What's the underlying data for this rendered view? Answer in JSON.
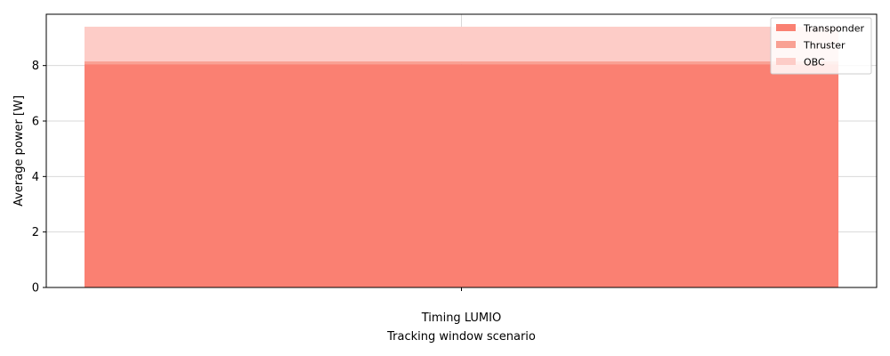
{
  "chart_data": {
    "type": "bar",
    "stacked": true,
    "categories": [
      "Timing LUMIO"
    ],
    "series": [
      {
        "name": "Transponder",
        "values": [
          8.05
        ],
        "color": "#fa8072"
      },
      {
        "name": "Thruster",
        "values": [
          0.1
        ],
        "color": "#f9a194"
      },
      {
        "name": "OBC",
        "values": [
          1.25
        ],
        "color": "#fdccc7"
      }
    ],
    "xlabel": "Tracking window scenario",
    "ylabel": "Average power [W]",
    "ylim": [
      0,
      9.85
    ],
    "yticks": [
      0,
      2,
      4,
      6,
      8
    ],
    "grid": true,
    "legend_position": "top-right"
  }
}
